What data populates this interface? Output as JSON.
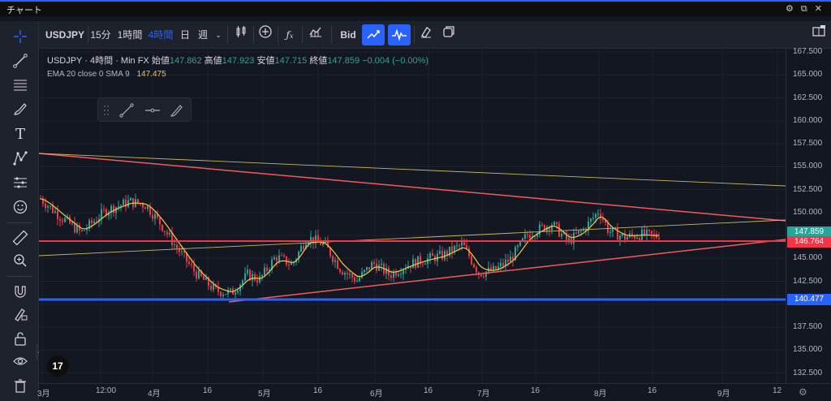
{
  "window": {
    "title": "チャート",
    "controls": "⚙ ⧉ ✕"
  },
  "toolbar": {
    "symbol": "USDJPY",
    "intervals": [
      "15分",
      "1時間",
      "4時間",
      "日",
      "週"
    ],
    "active_interval": "4時間",
    "bid_label": "Bid"
  },
  "legend": {
    "symbol": "USDJPY",
    "interval": "4時間",
    "source": "Min FX",
    "open_label": "始値",
    "open": "147.862",
    "high_label": "高値",
    "high": "147.923",
    "low_label": "安値",
    "low": "147.715",
    "close_label": "終値",
    "close": "147.859",
    "change": "−0.004 (−0.00%)"
  },
  "ema": {
    "label": "EMA 20 close 0 SMA 9",
    "value": "147.475"
  },
  "price_axis": {
    "ticks": [
      "167.500",
      "165.000",
      "162.500",
      "160.000",
      "157.500",
      "155.000",
      "152.500",
      "150.000",
      "145.000",
      "142.500",
      "137.500",
      "135.000",
      "132.500"
    ]
  },
  "price_tags": [
    {
      "value": "147.859",
      "color": "#26a69a"
    },
    {
      "value": "146.764",
      "color": "#f23645"
    },
    {
      "value": "140.477",
      "color": "#2962ff"
    }
  ],
  "time_axis": {
    "labels": [
      "3月",
      "12:00",
      "4月",
      "16",
      "5月",
      "16",
      "6月",
      "16",
      "7月",
      "16",
      "8月",
      "16",
      "9月",
      "12"
    ]
  },
  "colors": {
    "accent": "#2962ff",
    "up": "#26a69a",
    "down": "#f23645",
    "ema": "#f5c542",
    "trendline_red": "#f55a5a",
    "trendline_yellow": "#c9b85a"
  },
  "icons": {
    "left_toolbar": [
      "crosshair-icon",
      "trendline-icon",
      "fib-icon",
      "brush-icon",
      "text-icon",
      "pattern-icon",
      "prediction-icon",
      "emoji-icon",
      "ruler-icon",
      "zoom-icon",
      "magnet-icon",
      "lock-drawing-icon",
      "unlock-icon",
      "eye-icon",
      "trash-icon"
    ],
    "floating_toolbar": [
      "drag-handle-icon",
      "trendline-icon",
      "horizontal-line-icon",
      "brush-icon"
    ]
  }
}
